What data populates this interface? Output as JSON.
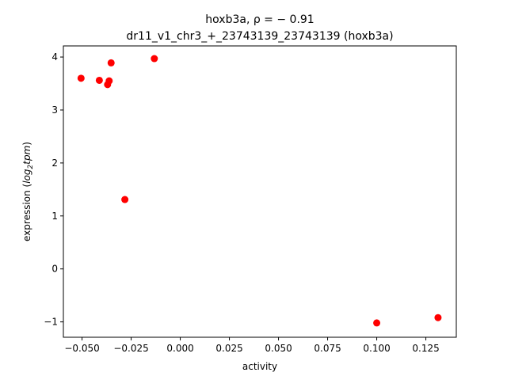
{
  "chart_data": {
    "type": "scatter",
    "title_line1": "hoxb3a, ρ = − 0.91",
    "title_line2": "dr11_v1_chr3_+_23743139_23743139 (hoxb3a)",
    "xlabel": "activity",
    "ylabel": "expression (log₂tpm)",
    "xlim": [
      -0.0595,
      0.1405
    ],
    "ylim": [
      -1.29,
      4.21
    ],
    "xticks": [
      -0.05,
      -0.025,
      0.0,
      0.025,
      0.05,
      0.075,
      0.1,
      0.125
    ],
    "xtick_labels": [
      "−0.050",
      "−0.025",
      "0.000",
      "0.025",
      "0.050",
      "0.075",
      "0.100",
      "0.125"
    ],
    "yticks": [
      -1,
      0,
      1,
      2,
      3,
      4
    ],
    "ytick_labels": [
      "−1",
      "0",
      "1",
      "2",
      "3",
      "4"
    ],
    "point_color": "#ff0000",
    "grid": false,
    "legend": "none",
    "series": [
      {
        "points": [
          {
            "x": -0.0505,
            "y": 3.6
          },
          {
            "x": -0.0412,
            "y": 3.56
          },
          {
            "x": -0.037,
            "y": 3.48
          },
          {
            "x": -0.0362,
            "y": 3.55
          },
          {
            "x": -0.0352,
            "y": 3.89
          },
          {
            "x": -0.0282,
            "y": 1.31
          },
          {
            "x": -0.0132,
            "y": 3.97
          },
          {
            "x": 0.1,
            "y": -1.02
          },
          {
            "x": 0.1312,
            "y": -0.92
          }
        ]
      }
    ]
  }
}
